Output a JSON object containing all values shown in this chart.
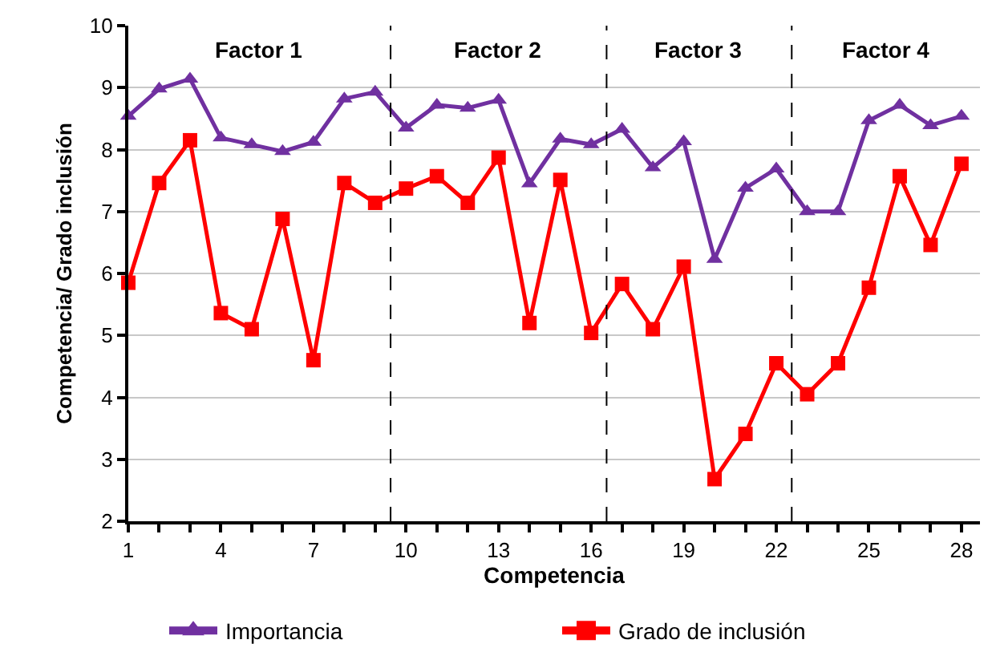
{
  "chart_data": {
    "type": "line",
    "xlabel": "Competencia",
    "ylabel": "Competencia/ Grado inclusión",
    "x": [
      1,
      2,
      3,
      4,
      5,
      6,
      7,
      8,
      9,
      10,
      11,
      12,
      13,
      14,
      15,
      16,
      17,
      18,
      19,
      20,
      21,
      22,
      23,
      24,
      25,
      26,
      27,
      28
    ],
    "series": [
      {
        "name": "Importancia",
        "color": "#7030a0",
        "marker": "triangle",
        "values": [
          8.54,
          8.98,
          9.14,
          8.19,
          8.08,
          7.97,
          8.12,
          8.82,
          8.93,
          8.35,
          8.72,
          8.67,
          8.8,
          7.45,
          8.17,
          8.08,
          8.33,
          7.71,
          8.13,
          6.23,
          7.38,
          7.69,
          7.0,
          7.0,
          8.47,
          8.72,
          8.39,
          8.54
        ]
      },
      {
        "name": "Grado de inclusión",
        "color": "#ff0000",
        "marker": "square",
        "values": [
          5.85,
          7.46,
          8.15,
          5.36,
          5.1,
          6.88,
          4.6,
          7.46,
          7.14,
          7.37,
          7.57,
          7.14,
          7.87,
          5.2,
          7.51,
          5.04,
          5.83,
          5.1,
          6.11,
          2.68,
          3.41,
          4.55,
          4.05,
          4.55,
          5.77,
          7.57,
          6.46,
          7.77
        ]
      }
    ],
    "xlim": [
      1,
      28.6
    ],
    "ylim": [
      2,
      10
    ],
    "xticks": [
      1,
      {
        "value": 2,
        "label": null
      },
      {
        "value": 3,
        "label": null
      },
      4,
      {
        "value": 5,
        "label": null
      },
      {
        "value": 6,
        "label": null
      },
      7,
      {
        "value": 8,
        "label": null
      },
      {
        "value": 9,
        "label": null
      },
      10,
      {
        "value": 11,
        "label": null
      },
      {
        "value": 12,
        "label": null
      },
      13,
      {
        "value": 14,
        "label": null
      },
      {
        "value": 15,
        "label": null
      },
      16,
      {
        "value": 17,
        "label": null
      },
      {
        "value": 18,
        "label": null
      },
      19,
      {
        "value": 20,
        "label": null
      },
      {
        "value": 21,
        "label": null
      },
      22,
      {
        "value": 23,
        "label": null
      },
      {
        "value": 24,
        "label": null
      },
      25,
      {
        "value": 26,
        "label": null
      },
      {
        "value": 27,
        "label": null
      },
      28
    ],
    "yticks": [
      2,
      3,
      4,
      5,
      6,
      7,
      8,
      9,
      10
    ],
    "ref_lines": [
      {
        "axis": "x",
        "value": 9.5,
        "color": "#000000",
        "line_style": "dashed"
      },
      {
        "axis": "x",
        "value": 16.5,
        "color": "#000000",
        "line_style": "dashed"
      },
      {
        "axis": "x",
        "value": 22.5,
        "color": "#000000",
        "line_style": "dashed"
      }
    ],
    "annotations": [
      "Factor 1",
      "Factor 2",
      "Factor 3",
      "Factor 4"
    ],
    "grid": "y",
    "legend": "bottom",
    "line_style": "solid"
  }
}
